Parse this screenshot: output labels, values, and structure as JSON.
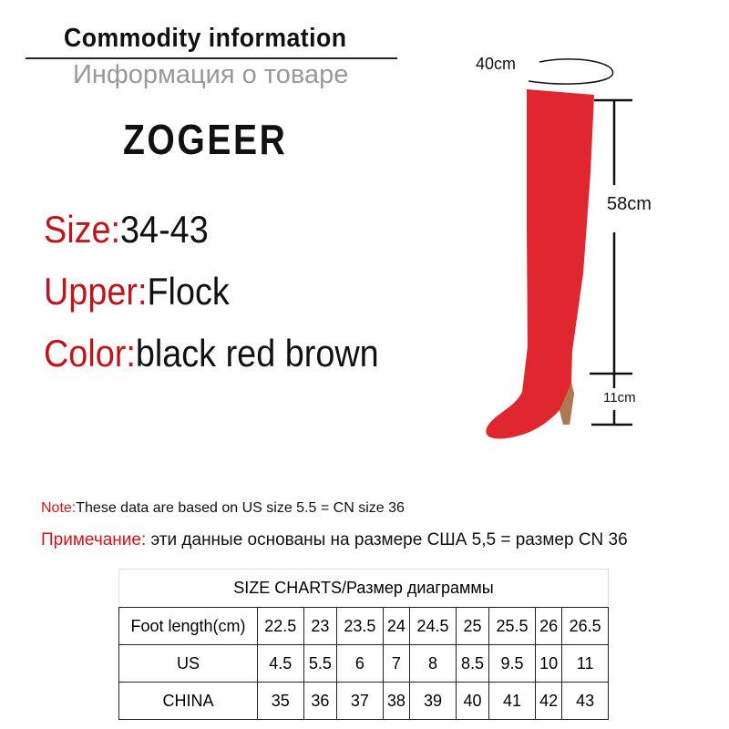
{
  "header": {
    "title": "Commodity information",
    "subtitle": "Информация о товаре",
    "brand": "ZOGEER"
  },
  "specs": [
    {
      "key": "Size:",
      "value": "34-43"
    },
    {
      "key": "Upper:",
      "value": "Flock"
    },
    {
      "key": "Color:",
      "value": "black red brown"
    }
  ],
  "product_image": {
    "color": "#e0262e",
    "measurements": {
      "circumference": "40cm",
      "shaft_height": "58cm",
      "heel_height": "11cm"
    }
  },
  "notes": [
    {
      "key": "Note:",
      "text": "These data are based on US size 5.5 = CN size 36"
    },
    {
      "key": "Примечание:",
      "text": " эти данные основаны на размере США 5,5 = размер CN 36"
    }
  ],
  "size_chart": {
    "title": "SIZE CHARTS/Размер диаграммы",
    "rows": [
      {
        "label": "Foot length(cm)",
        "values": [
          "22.5",
          "23",
          "23.5",
          "24",
          "24.5",
          "25",
          "25.5",
          "26",
          "26.5"
        ]
      },
      {
        "label": "US",
        "values": [
          "4.5",
          "5.5",
          "6",
          "7",
          "8",
          "8.5",
          "9.5",
          "10",
          "11"
        ]
      },
      {
        "label": "CHINA",
        "values": [
          "35",
          "36",
          "37",
          "38",
          "39",
          "40",
          "41",
          "42",
          "43"
        ]
      }
    ]
  },
  "colors": {
    "accent_red": "#c0161b"
  }
}
